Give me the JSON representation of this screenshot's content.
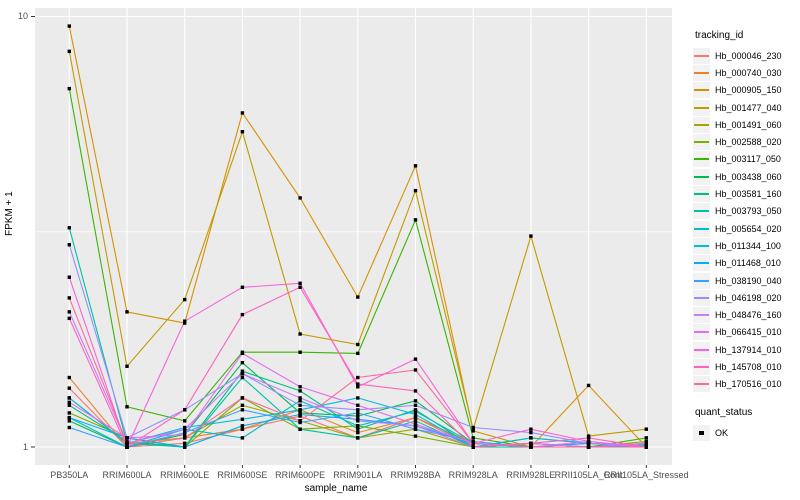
{
  "chart_data": {
    "type": "line",
    "title": "",
    "xlabel": "sample_name",
    "ylabel": "FPKM + 1",
    "y_scale": "log10",
    "ylim": [
      0.91,
      10.46
    ],
    "yticks": [
      {
        "label": "1",
        "value": 1
      },
      {
        "label": "10",
        "value": 10
      }
    ],
    "y_minor_ticks": [
      3.162
    ],
    "grid": "on",
    "panel_bg": "#EBEBEB",
    "grid_color": "#FFFFFF",
    "point_color": "#000000",
    "point_shape": "square",
    "legend_title": "tracking_id",
    "legend_position": "right",
    "quant_legend": {
      "title": "quant_status",
      "items": [
        {
          "label": "OK",
          "marker": "black-square"
        }
      ]
    },
    "categories": [
      "PB350LA",
      "RRIM600LA",
      "RRIM600LE",
      "RRIM600SE",
      "RRIM600PE",
      "RRIM901LA",
      "RRIM928BA",
      "RRIM928LA",
      "RRIM928LE",
      "RRII105LA_Cont",
      "RRII105LA_Stressed"
    ],
    "series": [
      {
        "name": "Hb_000046_230",
        "color": "#F8766D",
        "values": [
          1.37,
          1.0,
          1.02,
          1.1,
          1.18,
          1.05,
          1.17,
          1.0,
          1.02,
          1.0,
          1.01
        ]
      },
      {
        "name": "Hb_000740_030",
        "color": "#EA8331",
        "values": [
          1.45,
          1.0,
          1.05,
          1.1,
          1.22,
          1.08,
          1.17,
          1.02,
          1.0,
          1.02,
          1.0
        ]
      },
      {
        "name": "Hb_000905_150",
        "color": "#D89000",
        "values": [
          9.5,
          2.06,
          1.94,
          5.97,
          3.79,
          2.23,
          4.5,
          1.09,
          1.0,
          1.39,
          1.0
        ]
      },
      {
        "name": "Hb_001477_040",
        "color": "#C09B00",
        "values": [
          8.3,
          1.54,
          2.2,
          5.4,
          1.83,
          1.73,
          3.94,
          1.1,
          3.09,
          1.06,
          1.1
        ]
      },
      {
        "name": "Hb_001491_060",
        "color": "#A3A500",
        "values": [
          1.3,
          1.02,
          1.05,
          1.25,
          1.15,
          1.05,
          1.1,
          1.0,
          1.02,
          1.0,
          1.03
        ]
      },
      {
        "name": "Hb_002588_020",
        "color": "#7CAE00",
        "values": [
          1.2,
          1.05,
          1.0,
          1.3,
          1.1,
          1.12,
          1.06,
          1.0,
          1.05,
          1.02,
          1.0
        ]
      },
      {
        "name": "Hb_003117_050",
        "color": "#39B600",
        "values": [
          6.8,
          1.24,
          1.15,
          1.66,
          1.66,
          1.65,
          3.37,
          1.05,
          1.0,
          1.0,
          1.05
        ]
      },
      {
        "name": "Hb_003438_060",
        "color": "#00BB4E",
        "values": [
          1.15,
          1.0,
          1.07,
          1.57,
          1.2,
          1.18,
          1.28,
          1.02,
          1.0,
          1.02,
          1.0
        ]
      },
      {
        "name": "Hb_003581_160",
        "color": "#00BF7D",
        "values": [
          1.25,
          1.03,
          1.0,
          1.5,
          1.35,
          1.1,
          1.22,
          1.0,
          1.02,
          1.0,
          1.02
        ]
      },
      {
        "name": "Hb_003793_050",
        "color": "#00C1A3",
        "values": [
          3.23,
          1.02,
          1.0,
          1.45,
          1.1,
          1.05,
          1.15,
          1.0,
          1.0,
          1.02,
          1.0
        ]
      },
      {
        "name": "Hb_005654_020",
        "color": "#00BFC4",
        "values": [
          1.17,
          1.0,
          1.1,
          1.05,
          1.28,
          1.12,
          1.21,
          1.02,
          1.0,
          1.0,
          1.02
        ]
      },
      {
        "name": "Hb_011344_100",
        "color": "#00BAE0",
        "values": [
          1.3,
          1.02,
          1.11,
          1.16,
          1.22,
          1.3,
          1.19,
          1.0,
          1.05,
          1.02,
          1.0
        ]
      },
      {
        "name": "Hb_011468_010",
        "color": "#00B0F6",
        "values": [
          1.17,
          1.05,
          1.0,
          1.12,
          1.19,
          1.16,
          1.12,
          1.02,
          1.0,
          1.0,
          1.01
        ]
      },
      {
        "name": "Hb_038190_040",
        "color": "#35A2FF",
        "values": [
          1.11,
          1.0,
          1.08,
          1.22,
          1.14,
          1.2,
          1.1,
          1.03,
          1.0,
          1.02,
          1.0
        ]
      },
      {
        "name": "Hb_046198_020",
        "color": "#9590FF",
        "values": [
          2.95,
          1.05,
          1.22,
          1.48,
          1.25,
          1.22,
          1.25,
          1.11,
          1.08,
          1.02,
          1.0
        ]
      },
      {
        "name": "Hb_048476_160",
        "color": "#C77CFF",
        "values": [
          2.06,
          1.02,
          1.1,
          1.48,
          1.3,
          1.15,
          1.12,
          1.0,
          1.02,
          1.0,
          1.02
        ]
      },
      {
        "name": "Hb_066415_010",
        "color": "#E76BF3",
        "values": [
          1.27,
          1.05,
          1.07,
          1.65,
          1.38,
          1.25,
          1.13,
          1.02,
          1.0,
          1.03,
          1.0
        ]
      },
      {
        "name": "Hb_137914_010",
        "color": "#FA62DB",
        "values": [
          2.48,
          1.0,
          1.96,
          2.35,
          2.4,
          1.38,
          1.6,
          1.02,
          1.1,
          1.03,
          1.0
        ]
      },
      {
        "name": "Hb_145708_010",
        "color": "#FF62BC",
        "values": [
          1.99,
          1.0,
          1.22,
          2.03,
          2.35,
          1.4,
          1.35,
          1.0,
          1.02,
          1.05,
          1.0
        ]
      },
      {
        "name": "Hb_170516_010",
        "color": "#FF6A98",
        "values": [
          2.22,
          1.02,
          1.05,
          1.3,
          1.15,
          1.45,
          1.51,
          1.02,
          1.0,
          1.0,
          1.0
        ]
      }
    ]
  }
}
